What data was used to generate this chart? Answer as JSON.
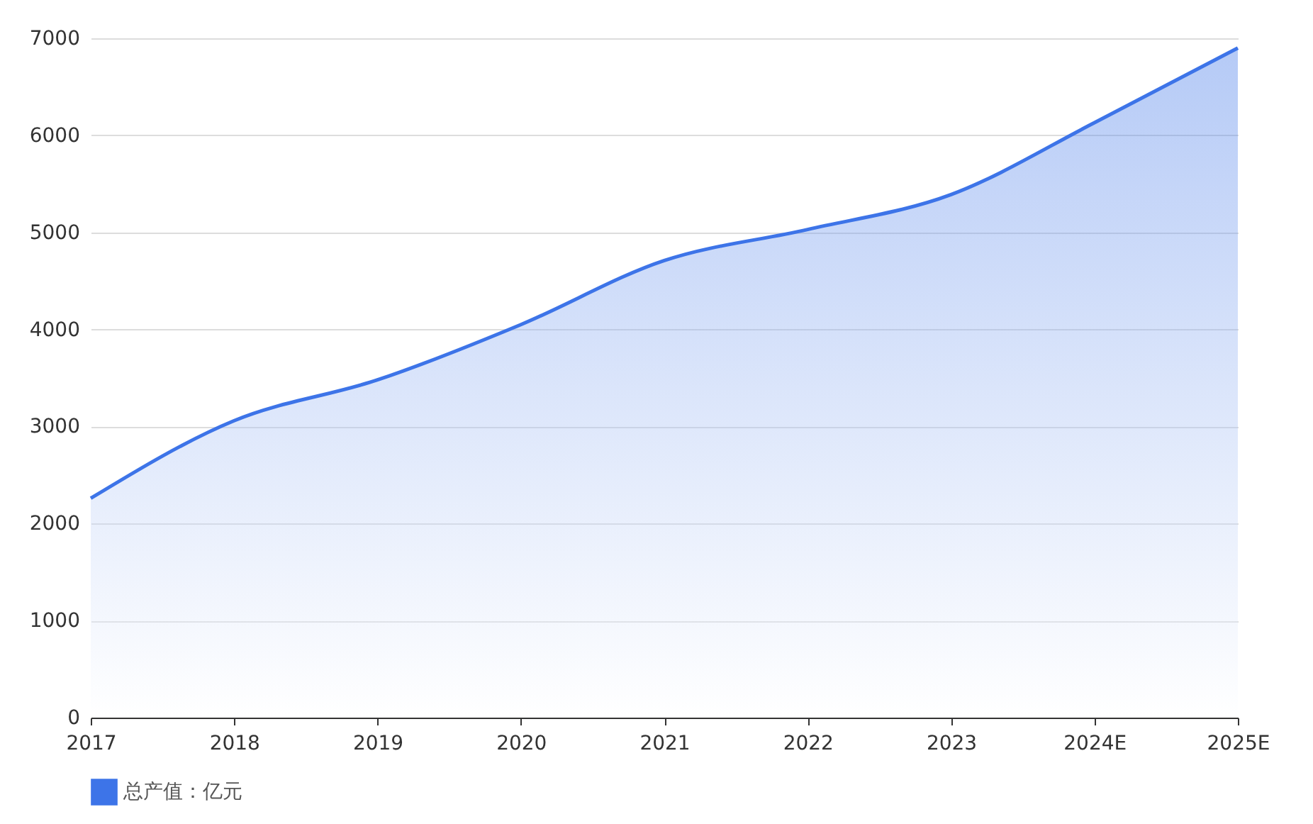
{
  "chart_data": {
    "type": "area",
    "categories": [
      "2017",
      "2018",
      "2019",
      "2020",
      "2021",
      "2022",
      "2023",
      "2024E",
      "2025E"
    ],
    "series": [
      {
        "name": "总产值：亿元",
        "color": "#3d74e8",
        "values": [
          2260,
          3060,
          3480,
          4050,
          4710,
          5030,
          5390,
          6130,
          6900
        ]
      }
    ],
    "ylim": [
      0,
      7000
    ],
    "yticks": [
      0,
      1000,
      2000,
      3000,
      4000,
      5000,
      6000,
      7000
    ],
    "grid": "y",
    "legend": "bottom"
  }
}
